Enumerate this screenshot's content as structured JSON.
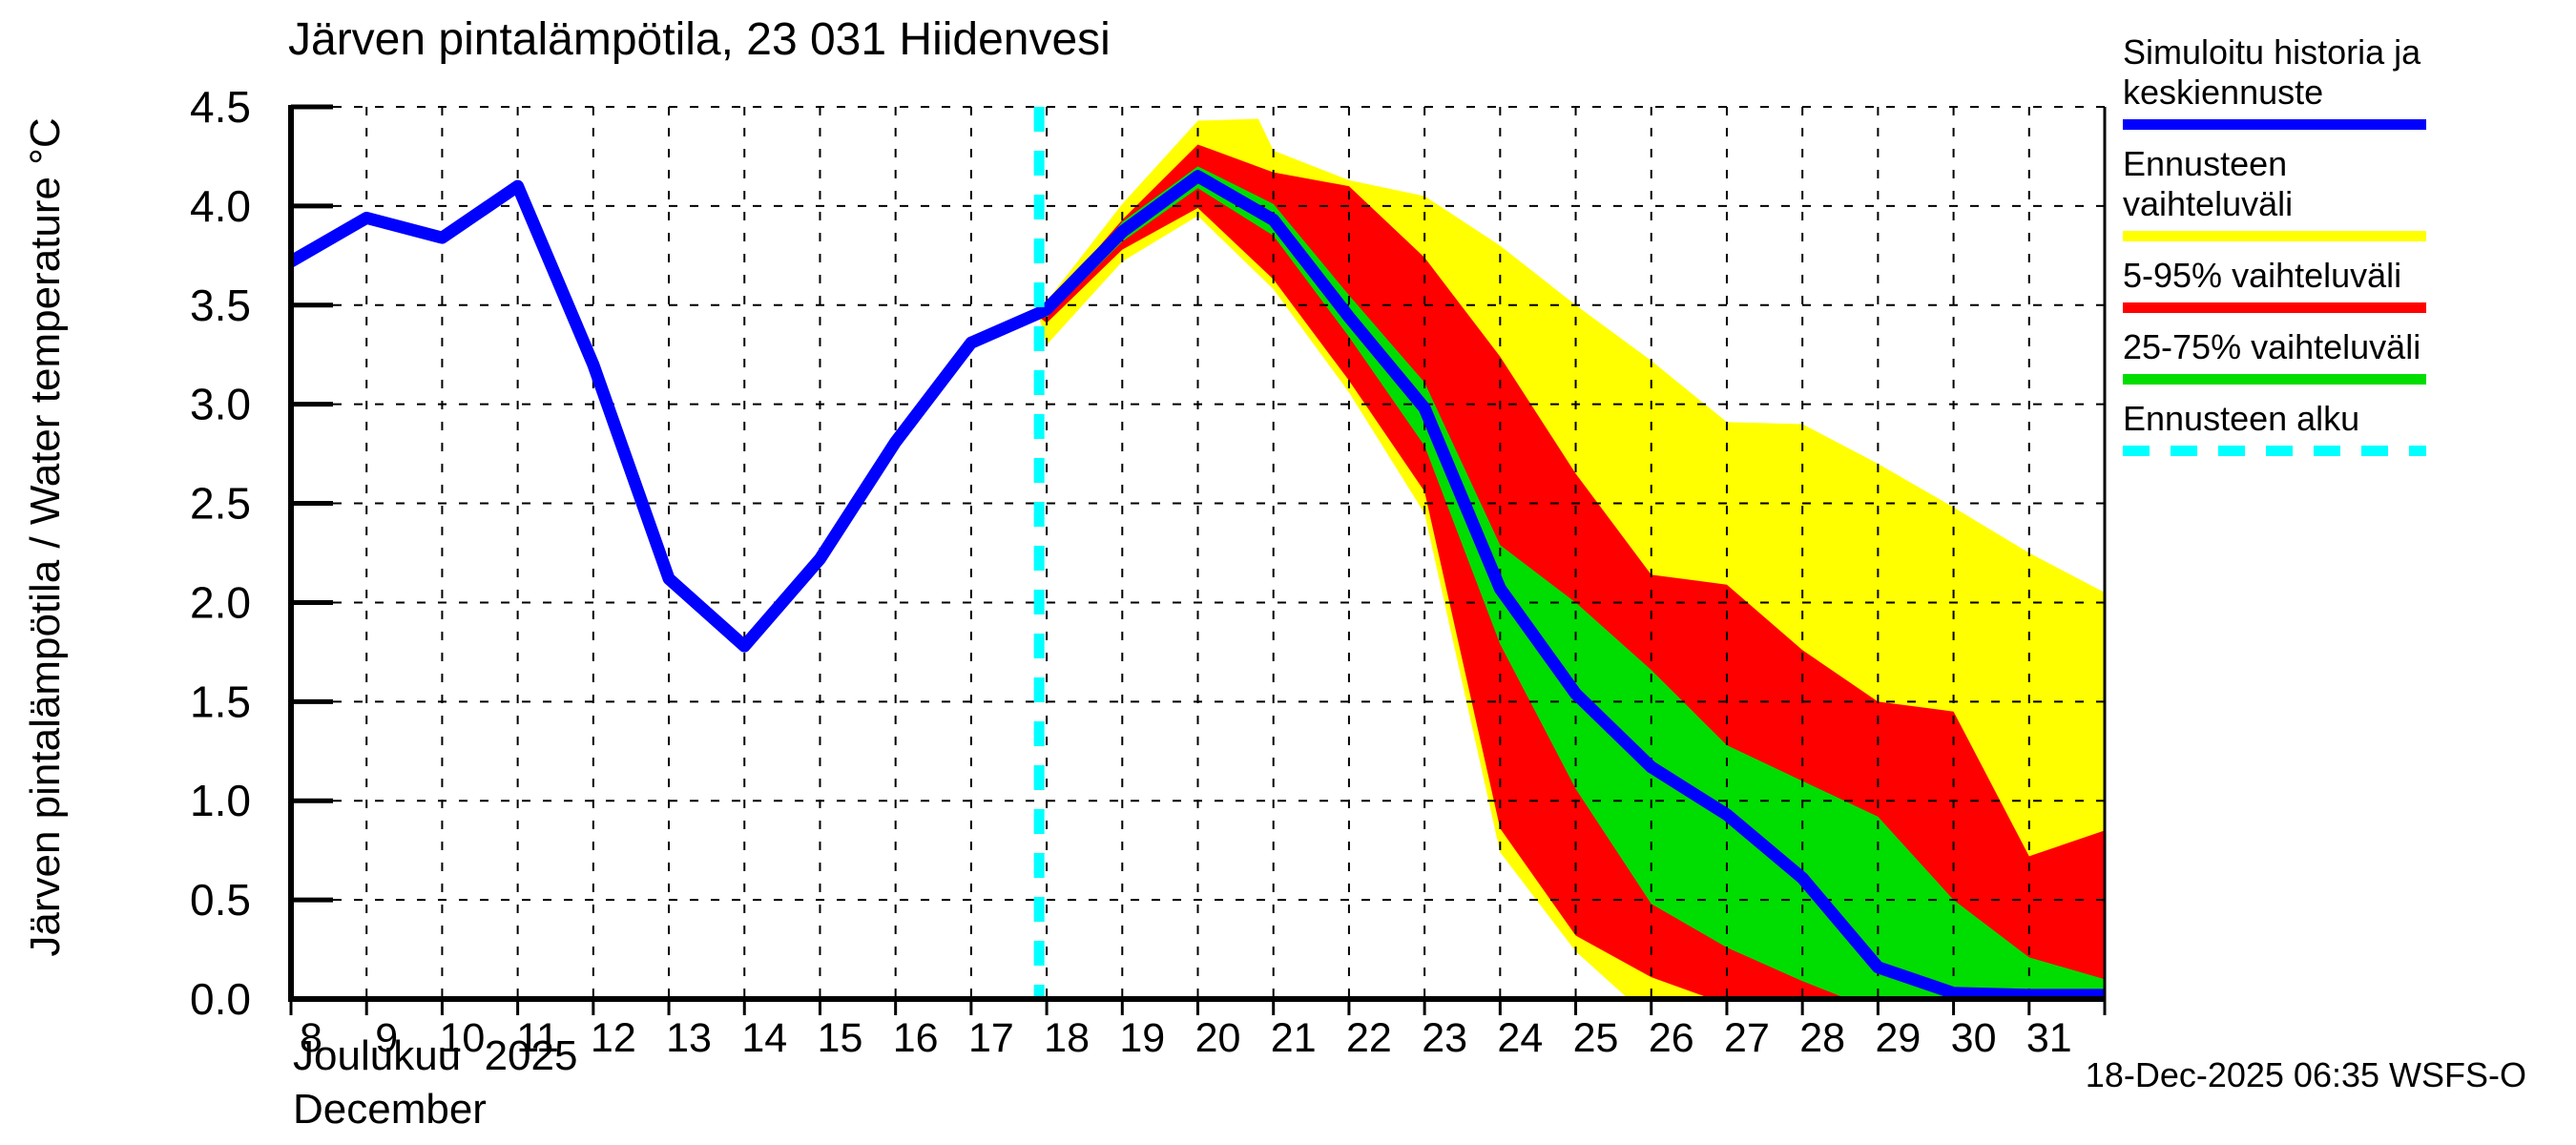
{
  "chart_data": {
    "type": "line",
    "title": "Järven pintalämpötila, 23 031 Hiidenvesi",
    "ylabel": "Järven pintalämpötila / Water temperature °C",
    "xlabel_fi": "Joulukuu  2025",
    "xlabel_en": "December",
    "timestamp": "18-Dec-2025 06:35 WSFS-O",
    "xlim": [
      8,
      32
    ],
    "ylim": [
      0,
      4.5
    ],
    "xticks": [
      8,
      9,
      10,
      11,
      12,
      13,
      14,
      15,
      16,
      17,
      18,
      19,
      20,
      21,
      22,
      23,
      24,
      25,
      26,
      27,
      28,
      29,
      30,
      31
    ],
    "ytick_labels": [
      "0.0",
      "0.5",
      "1.0",
      "1.5",
      "2.0",
      "2.5",
      "3.0",
      "3.5",
      "4.0",
      "4.5"
    ],
    "grid": true,
    "legend_position": "top-right",
    "forecast_start_x": 17.9,
    "colors": {
      "history_line": "#0000ff",
      "range_full": "#ffff00",
      "range_5_95": "#ff0000",
      "range_25_75": "#00dd00",
      "forecast_start": "#00ffff",
      "axis": "#000000"
    },
    "series": {
      "history": [
        [
          8,
          3.72
        ],
        [
          9,
          3.94
        ],
        [
          10,
          3.84
        ],
        [
          11,
          4.1
        ],
        [
          12,
          3.2
        ],
        [
          13,
          2.12
        ],
        [
          14,
          1.78
        ],
        [
          15,
          2.22
        ],
        [
          16,
          2.81
        ],
        [
          17,
          3.31
        ],
        [
          17.9,
          3.46
        ]
      ],
      "forecast_mean": [
        [
          17.9,
          3.46
        ],
        [
          18,
          3.48
        ],
        [
          19,
          3.87
        ],
        [
          20,
          4.15
        ],
        [
          21,
          3.93
        ],
        [
          22,
          3.44
        ],
        [
          23,
          2.98
        ],
        [
          24,
          2.07
        ],
        [
          25,
          1.54
        ],
        [
          26,
          1.17
        ],
        [
          27,
          0.93
        ],
        [
          28,
          0.61
        ],
        [
          29,
          0.16
        ],
        [
          30,
          0.03
        ],
        [
          31,
          0.02
        ],
        [
          32,
          0.02
        ]
      ]
    },
    "bands": [
      {
        "name": "ennusteen-vaihteluvali",
        "color": "#ffff00",
        "hi": [
          [
            17.9,
            3.46
          ],
          [
            18,
            3.52
          ],
          [
            19,
            4.01
          ],
          [
            20,
            4.43
          ],
          [
            20.8,
            4.44
          ],
          [
            21,
            4.28
          ],
          [
            22,
            4.13
          ],
          [
            23,
            4.05
          ],
          [
            24,
            3.8
          ],
          [
            25,
            3.5
          ],
          [
            26,
            3.22
          ],
          [
            27,
            2.91
          ],
          [
            28,
            2.9
          ],
          [
            29,
            2.7
          ],
          [
            30,
            2.48
          ],
          [
            31,
            2.25
          ],
          [
            32,
            2.05
          ]
        ],
        "lo": [
          [
            17.9,
            3.44
          ],
          [
            18,
            3.3
          ],
          [
            19,
            3.72
          ],
          [
            20,
            3.95
          ],
          [
            21,
            3.58
          ],
          [
            22,
            3.06
          ],
          [
            23,
            2.45
          ],
          [
            24,
            0.74
          ],
          [
            25,
            0.24
          ],
          [
            25.7,
            0.0
          ],
          [
            32,
            0.0
          ]
        ]
      },
      {
        "name": "5-95-vaihteluvali",
        "color": "#ff0000",
        "hi": [
          [
            17.9,
            3.46
          ],
          [
            18,
            3.49
          ],
          [
            19,
            3.93
          ],
          [
            20,
            4.31
          ],
          [
            21,
            4.17
          ],
          [
            22,
            4.1
          ],
          [
            23,
            3.74
          ],
          [
            24,
            3.24
          ],
          [
            25,
            2.65
          ],
          [
            26,
            2.14
          ],
          [
            27,
            2.09
          ],
          [
            28,
            1.76
          ],
          [
            29,
            1.5
          ],
          [
            30,
            1.45
          ],
          [
            31,
            0.72
          ],
          [
            32,
            0.85
          ]
        ],
        "lo": [
          [
            17.9,
            3.44
          ],
          [
            18,
            3.41
          ],
          [
            19,
            3.78
          ],
          [
            20,
            3.99
          ],
          [
            21,
            3.63
          ],
          [
            22,
            3.12
          ],
          [
            23,
            2.56
          ],
          [
            24,
            0.86
          ],
          [
            25,
            0.32
          ],
          [
            26,
            0.11
          ],
          [
            26.8,
            0.0
          ],
          [
            32,
            0.0
          ]
        ]
      },
      {
        "name": "25-75-vaihteluvali",
        "color": "#00dd00",
        "hi": [
          [
            17.9,
            3.46
          ],
          [
            18,
            3.47
          ],
          [
            19,
            3.92
          ],
          [
            20,
            4.2
          ],
          [
            21,
            4.01
          ],
          [
            22,
            3.55
          ],
          [
            23,
            3.11
          ],
          [
            24,
            2.29
          ],
          [
            25,
            2.0
          ],
          [
            26,
            1.66
          ],
          [
            27,
            1.28
          ],
          [
            28,
            1.1
          ],
          [
            29,
            0.92
          ],
          [
            30,
            0.5
          ],
          [
            31,
            0.21
          ],
          [
            32,
            0.1
          ]
        ],
        "lo": [
          [
            17.9,
            3.44
          ],
          [
            18,
            3.44
          ],
          [
            19,
            3.82
          ],
          [
            20,
            4.09
          ],
          [
            21,
            3.85
          ],
          [
            22,
            3.34
          ],
          [
            23,
            2.79
          ],
          [
            24,
            1.79
          ],
          [
            25,
            1.06
          ],
          [
            26,
            0.48
          ],
          [
            27,
            0.26
          ],
          [
            28,
            0.09
          ],
          [
            28.6,
            0.0
          ],
          [
            32,
            0.0
          ]
        ]
      }
    ],
    "legend": [
      {
        "label": "Simuloitu historia ja keskiennuste",
        "color": "#0000ff",
        "style": "solid"
      },
      {
        "label": "Ennusteen vaihteluväli",
        "color": "#ffff00",
        "style": "solid"
      },
      {
        "label": "5-95% vaihteluväli",
        "color": "#ff0000",
        "style": "solid"
      },
      {
        "label": "25-75% vaihteluväli",
        "color": "#00dd00",
        "style": "solid"
      },
      {
        "label": "Ennusteen alku",
        "color": "#00ffff",
        "style": "dashed"
      }
    ]
  }
}
